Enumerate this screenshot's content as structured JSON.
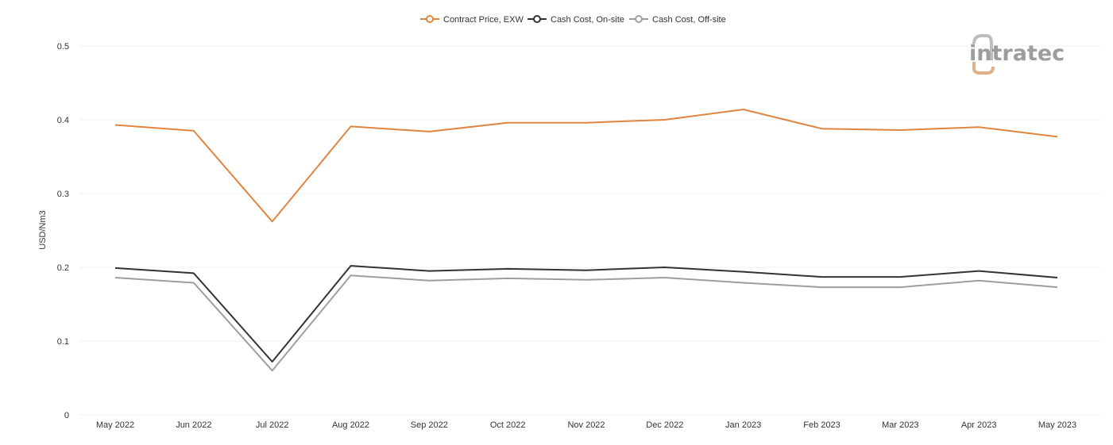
{
  "chart_data": {
    "type": "line",
    "title": "",
    "xlabel": "",
    "ylabel": "USD/Nm3",
    "categories": [
      "May 2022",
      "Jun 2022",
      "Jul 2022",
      "Aug 2022",
      "Sep 2022",
      "Oct 2022",
      "Nov 2022",
      "Dec 2022",
      "Jan 2023",
      "Feb 2023",
      "Mar 2023",
      "Apr 2023",
      "May 2023"
    ],
    "ylim": [
      0,
      0.5
    ],
    "yticks": [
      "0",
      "0.1",
      "0.2",
      "0.3",
      "0.4",
      "0.5"
    ],
    "grid": true,
    "legend_position": "top-center",
    "series": [
      {
        "name": "Contract Price, EXW",
        "color": "#e0853f",
        "values": [
          0.393,
          0.385,
          0.262,
          0.391,
          0.384,
          0.396,
          0.396,
          0.4,
          0.414,
          0.388,
          0.386,
          0.39,
          0.377
        ]
      },
      {
        "name": "Cash Cost, On-site",
        "color": "#333333",
        "values": [
          0.199,
          0.192,
          0.072,
          0.202,
          0.195,
          0.198,
          0.196,
          0.2,
          0.194,
          0.187,
          0.187,
          0.195,
          0.186
        ]
      },
      {
        "name": "Cash Cost, Off-site",
        "color": "#9e9e9e",
        "values": [
          0.186,
          0.179,
          0.06,
          0.189,
          0.182,
          0.185,
          0.183,
          0.186,
          0.179,
          0.173,
          0.173,
          0.182,
          0.173
        ]
      }
    ]
  },
  "brand": {
    "logo_text": "intratec",
    "primary_color": "#e0853f",
    "text_color": "#9d9d9d"
  }
}
